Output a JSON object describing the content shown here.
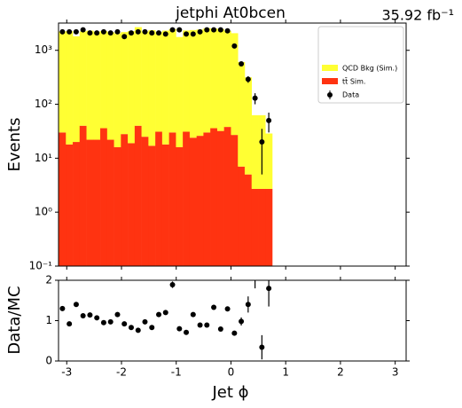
{
  "chart_data": [
    {
      "type": "histogram",
      "title": "jetphi  At0bcen",
      "annotation": "35.92 fb⁻¹",
      "ylabel": "Events",
      "log_y": true,
      "legend": "upper right",
      "bins": [
        -3.142,
        -3.016,
        -2.89,
        -2.765,
        -2.639,
        -2.513,
        -2.388,
        -2.262,
        -2.136,
        -2.011,
        -1.885,
        -1.759,
        -1.634,
        -1.508,
        -1.382,
        -1.257,
        -1.131,
        -1.005,
        -0.88,
        -0.754,
        -0.628,
        -0.503,
        -0.377,
        -0.251,
        -0.126,
        0.0,
        0.126,
        0.251,
        0.377,
        0.503,
        0.628,
        0.754
      ],
      "series": [
        {
          "name": "tt̄ Sim.",
          "color": "#ff3311",
          "values": [
            30,
            18,
            20,
            40,
            22,
            22,
            36,
            22,
            16,
            28,
            19,
            40,
            25,
            17,
            31,
            18,
            30,
            16,
            31,
            24,
            26,
            30,
            36,
            32,
            38,
            27,
            7,
            5,
            2.7,
            2.7,
            2.7
          ]
        },
        {
          "name": "QCD Bkg (Sim.)",
          "color": "#ffff33",
          "values": [
            2200,
            2250,
            1800,
            2200,
            2300,
            2200,
            2250,
            2150,
            2050,
            2150,
            2250,
            2650,
            2200,
            2350,
            2150,
            2300,
            2450,
            1750,
            2300,
            2350,
            2400,
            2550,
            2500,
            2450,
            2250,
            2050,
            600,
            310,
            60,
            60,
            26
          ]
        }
      ],
      "data": {
        "name": "Data",
        "color": "#000000",
        "values": [
          2200,
          2200,
          2200,
          2400,
          2100,
          2100,
          2200,
          2100,
          2200,
          1800,
          2100,
          2200,
          2200,
          2100,
          2100,
          2000,
          2400,
          2400,
          2000,
          2000,
          2200,
          2400,
          2400,
          2400,
          2300,
          1200,
          560,
          290,
          130,
          20,
          50
        ],
        "errors": [
          47,
          47,
          47,
          49,
          46,
          46,
          47,
          46,
          47,
          42,
          46,
          47,
          47,
          46,
          46,
          45,
          49,
          49,
          45,
          45,
          47,
          49,
          49,
          49,
          48,
          35,
          24,
          40,
          30,
          15,
          20
        ]
      },
      "xlim": [
        -3.15,
        3.2
      ],
      "xticks": [
        -3,
        -2,
        -1,
        0,
        1,
        2,
        3
      ],
      "ylim": [
        0.1,
        3200
      ],
      "yticks": [
        {
          "value": 0.1,
          "label": "10⁻¹"
        },
        {
          "value": 1,
          "label": "10⁰"
        },
        {
          "value": 10,
          "label": "10¹"
        },
        {
          "value": 100,
          "label": "10²"
        },
        {
          "value": 1000,
          "label": "10³"
        }
      ]
    },
    {
      "type": "scatter",
      "ylabel": "Data/MC",
      "xlabel": "Jet ϕ",
      "color": "#000000",
      "x": [
        -3.079,
        -2.953,
        -2.827,
        -2.702,
        -2.576,
        -2.45,
        -2.325,
        -2.199,
        -2.073,
        -1.948,
        -1.822,
        -1.696,
        -1.571,
        -1.445,
        -1.319,
        -1.194,
        -1.068,
        -0.942,
        -0.817,
        -0.691,
        -0.565,
        -0.44,
        -0.314,
        -0.188,
        -0.063,
        0.063,
        0.188,
        0.314,
        0.44,
        0.565,
        0.691
      ],
      "values": [
        1.3,
        0.92,
        1.4,
        1.12,
        1.14,
        1.07,
        0.95,
        0.97,
        1.15,
        0.92,
        0.83,
        0.76,
        0.97,
        0.83,
        1.15,
        1.2,
        1.89,
        0.8,
        0.71,
        1.15,
        0.89,
        0.89,
        1.33,
        0.79,
        1.29,
        0.69,
        0.98,
        1.4,
        2.3,
        0.34,
        1.8
      ],
      "errors": [
        0.05,
        0.05,
        0.06,
        0.05,
        0.05,
        0.05,
        0.05,
        0.05,
        0.05,
        0.05,
        0.04,
        0.04,
        0.05,
        0.04,
        0.05,
        0.05,
        0.08,
        0.04,
        0.04,
        0.05,
        0.04,
        0.04,
        0.06,
        0.04,
        0.06,
        0.05,
        0.1,
        0.2,
        0.5,
        0.3,
        0.45
      ],
      "xlim": [
        -3.15,
        3.2
      ],
      "xticks": [
        -3,
        -2,
        -1,
        0,
        1,
        2,
        3
      ],
      "ylim": [
        0,
        2
      ],
      "yticks": [
        0,
        1,
        2
      ]
    }
  ]
}
